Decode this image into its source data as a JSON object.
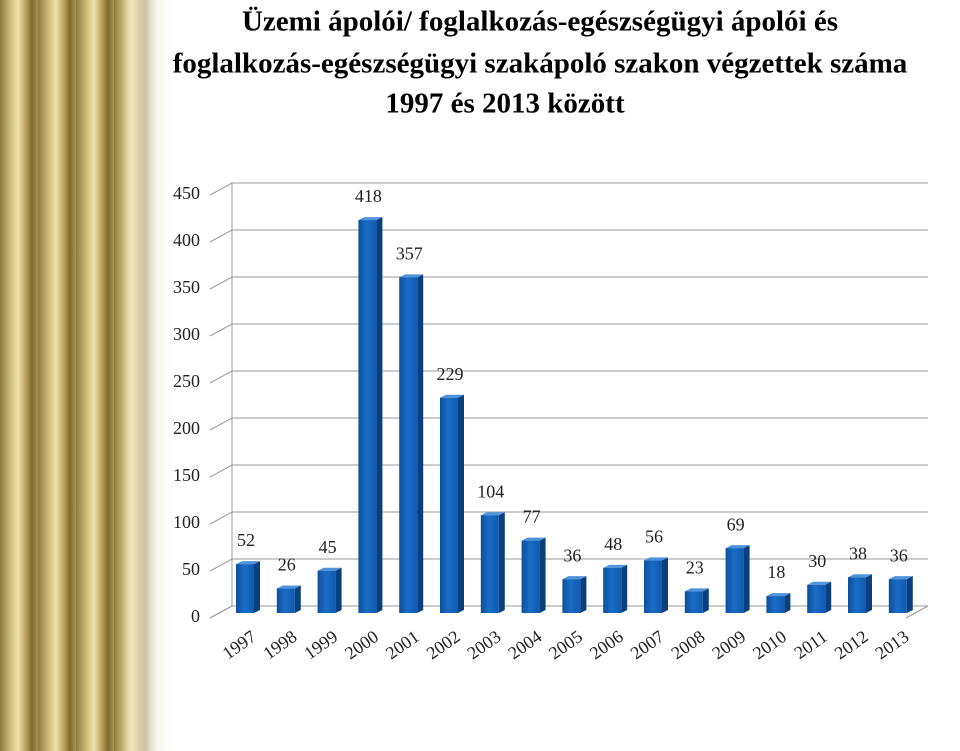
{
  "chart_data": {
    "type": "bar3d",
    "title": [
      "Üzemi ápolói/ foglalkozás-egészségügyi ápolói és",
      "foglalkozás-egészségügyi szakápoló szakon végzettek száma",
      "1997 és 2013 között"
    ],
    "categories": [
      "1997",
      "1998",
      "1999",
      "2000",
      "2001",
      "2002",
      "2003",
      "2004",
      "2005",
      "2006",
      "2007",
      "2008",
      "2009",
      "2010",
      "2011",
      "2012",
      "2013"
    ],
    "values": [
      52,
      26,
      45,
      418,
      357,
      229,
      104,
      77,
      36,
      48,
      56,
      23,
      69,
      18,
      30,
      38,
      36
    ],
    "color": "#1a6cc4",
    "ylim": [
      0,
      450
    ],
    "yticks": [
      0,
      50,
      100,
      150,
      200,
      250,
      300,
      350,
      400,
      450
    ],
    "grid": true
  }
}
